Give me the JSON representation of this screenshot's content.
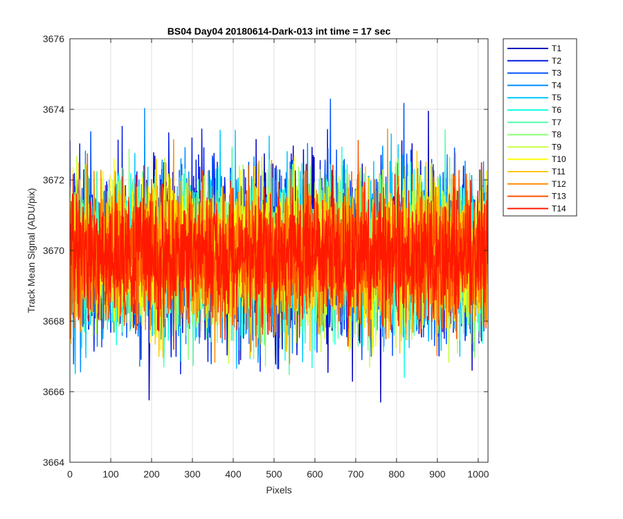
{
  "chart_data": {
    "type": "line",
    "title": "BS04 Day04 20180614-Dark-013 int time = 17 sec",
    "xlabel": "Pixels",
    "ylabel": "Track Mean Signal (ADU/pix)",
    "xlim": [
      0,
      1024
    ],
    "ylim": [
      3664,
      3676
    ],
    "xticks": [
      0,
      100,
      200,
      300,
      400,
      500,
      600,
      700,
      800,
      900,
      1000
    ],
    "yticks": [
      3664,
      3666,
      3668,
      3670,
      3672,
      3674,
      3676
    ],
    "grid": true,
    "legend_position": "outside-top-right",
    "center_level": 3669.9,
    "spread_std": 1.4,
    "n_pixels": 1024,
    "series": [
      {
        "name": "T1",
        "color": "#0000bf"
      },
      {
        "name": "T2",
        "color": "#0019e6"
      },
      {
        "name": "T3",
        "color": "#0051ff"
      },
      {
        "name": "T4",
        "color": "#008cff"
      },
      {
        "name": "T5",
        "color": "#00c6ff"
      },
      {
        "name": "T6",
        "color": "#19ffe6"
      },
      {
        "name": "T7",
        "color": "#51ffae"
      },
      {
        "name": "T8",
        "color": "#8cff73"
      },
      {
        "name": "T9",
        "color": "#c6ff39"
      },
      {
        "name": "T10",
        "color": "#ffff00"
      },
      {
        "name": "T11",
        "color": "#ffc600"
      },
      {
        "name": "T12",
        "color": "#ff8c00"
      },
      {
        "name": "T13",
        "color": "#ff5100"
      },
      {
        "name": "T14",
        "color": "#ff1900"
      }
    ]
  }
}
